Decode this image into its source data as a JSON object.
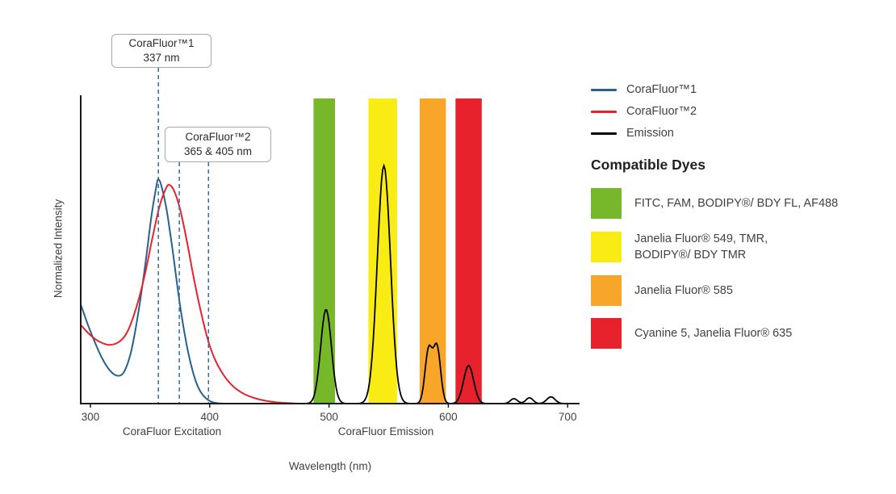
{
  "chart_data": {
    "type": "line",
    "xlabel": "Wavelength (nm)",
    "ylabel": "Normalized Intensity",
    "xlim": [
      292,
      710
    ],
    "ylim": [
      0,
      1.36
    ],
    "x_ticks": [
      300,
      400,
      500,
      600,
      700
    ],
    "grid": false,
    "legend_position": "right",
    "axis_color": "#1a1a1a",
    "dash_color": "#2e6da4",
    "axis_captions": [
      {
        "text": "CoraFluor Excitation"
      },
      {
        "text": "CoraFluor Emission"
      }
    ],
    "annotations": [
      {
        "title": "CoraFluor™1",
        "subtitle": "337 nm",
        "values_nm": [
          337
        ],
        "draw_nm": [
          357
        ]
      },
      {
        "title": "CoraFluor™2",
        "subtitle": "365 & 405 nm",
        "values_nm": [
          365,
          405
        ],
        "draw_nm": [
          374.5,
          399
        ]
      }
    ],
    "series": [
      {
        "name": "CoraFluor™1",
        "role": "excitation",
        "color": "#27618e",
        "points": [
          [
            292,
            0.44
          ],
          [
            298,
            0.35
          ],
          [
            304,
            0.27
          ],
          [
            310,
            0.2
          ],
          [
            316,
            0.15
          ],
          [
            322,
            0.125
          ],
          [
            328,
            0.14
          ],
          [
            334,
            0.23
          ],
          [
            340,
            0.4
          ],
          [
            346,
            0.62
          ],
          [
            351,
            0.83
          ],
          [
            355,
            0.96
          ],
          [
            357,
            1.0
          ],
          [
            360,
            0.96
          ],
          [
            364,
            0.86
          ],
          [
            369,
            0.68
          ],
          [
            374,
            0.48
          ],
          [
            379,
            0.31
          ],
          [
            384,
            0.18
          ],
          [
            389,
            0.09
          ],
          [
            394,
            0.04
          ],
          [
            400,
            0.012
          ],
          [
            406,
            0.002
          ],
          [
            412,
            0
          ]
        ]
      },
      {
        "name": "CoraFluor™2",
        "role": "excitation",
        "color": "#e8222d",
        "points": [
          [
            292,
            0.35
          ],
          [
            300,
            0.305
          ],
          [
            308,
            0.275
          ],
          [
            316,
            0.262
          ],
          [
            324,
            0.275
          ],
          [
            331,
            0.32
          ],
          [
            338,
            0.42
          ],
          [
            345,
            0.56
          ],
          [
            352,
            0.74
          ],
          [
            358,
            0.88
          ],
          [
            363,
            0.955
          ],
          [
            366,
            0.975
          ],
          [
            370,
            0.95
          ],
          [
            375,
            0.87
          ],
          [
            381,
            0.72
          ],
          [
            387,
            0.55
          ],
          [
            393,
            0.4
          ],
          [
            399,
            0.275
          ],
          [
            405,
            0.19
          ],
          [
            412,
            0.125
          ],
          [
            420,
            0.075
          ],
          [
            430,
            0.04
          ],
          [
            442,
            0.018
          ],
          [
            455,
            0.006
          ],
          [
            470,
            0.001
          ],
          [
            485,
            0
          ]
        ]
      },
      {
        "name": "Emission",
        "role": "emission",
        "color": "#000000",
        "peaks": [
          {
            "center": 497.5,
            "height": 0.42,
            "width": 4.5
          },
          {
            "center": 546,
            "height": 1.06,
            "width": 5.5
          },
          {
            "center": 583.5,
            "height": 0.24,
            "width": 3.0
          },
          {
            "center": 590.5,
            "height": 0.25,
            "width": 3.0
          },
          {
            "center": 617,
            "height": 0.17,
            "width": 4.2
          },
          {
            "center": 655,
            "height": 0.022,
            "width": 3.0
          },
          {
            "center": 668,
            "height": 0.026,
            "width": 3.0
          },
          {
            "center": 686,
            "height": 0.03,
            "width": 3.5
          }
        ]
      }
    ],
    "filter_bands": [
      {
        "name": "green-filter-band",
        "color": "#76b82a",
        "from": 487,
        "to": 505
      },
      {
        "name": "yellow-filter-band",
        "color": "#f9ec15",
        "from": 533,
        "to": 557
      },
      {
        "name": "orange-filter-band",
        "color": "#f7a629",
        "from": 576,
        "to": 598
      },
      {
        "name": "red-filter-band",
        "color": "#e8222d",
        "from": 606,
        "to": 628
      }
    ]
  },
  "legend": {
    "items": [
      {
        "label": "CoraFluor™1",
        "color": "#27618e"
      },
      {
        "label": "CoraFluor™2",
        "color": "#e8222d"
      },
      {
        "label": "Emission",
        "color": "#000000"
      }
    ],
    "dyes_heading": "Compatible Dyes",
    "dyes": [
      {
        "color": "#76b82a",
        "lines": [
          "FITC, FAM, BODIPY®/ BDY FL, AF488"
        ]
      },
      {
        "color": "#f9ec15",
        "lines": [
          "Janelia Fluor® 549, TMR,",
          "BODIPY®/ BDY TMR"
        ]
      },
      {
        "color": "#f7a629",
        "lines": [
          "Janelia Fluor® 585"
        ]
      },
      {
        "color": "#e8222d",
        "lines": [
          "Cyanine 5, Janelia Fluor® 635"
        ]
      }
    ]
  }
}
